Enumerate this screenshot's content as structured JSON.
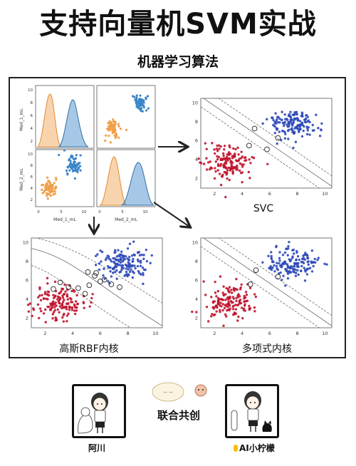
{
  "header": {
    "title": "支持向量机SVM实战",
    "subtitle": "机器学习算法"
  },
  "pairplot": {
    "x_labels": [
      "Med_1_mL",
      "Med_2_mL"
    ],
    "y_labels": [
      "Med_1_mL",
      "Med_2_mL"
    ],
    "ticks_x": [
      "0",
      "5",
      "10"
    ],
    "ticks_y": [
      "10",
      "8",
      "6",
      "4",
      "2"
    ],
    "colors": {
      "orange": "#f0a04b",
      "blue": "#3a86c8"
    }
  },
  "plots": {
    "svc": {
      "caption": "SVC"
    },
    "rbf": {
      "caption": "高斯RBF内核"
    },
    "poly": {
      "caption": "多项式内核"
    },
    "ticks_x": [
      "2",
      "4",
      "6",
      "8",
      "10"
    ],
    "ticks_y": [
      "10",
      "8",
      "6",
      "4",
      "2"
    ],
    "colors": {
      "red": "#c0142c",
      "blue": "#2e49b8"
    }
  },
  "footer": {
    "collab_text": "联合共创",
    "left_name": "阿川",
    "right_name": "AI小柠檬"
  }
}
